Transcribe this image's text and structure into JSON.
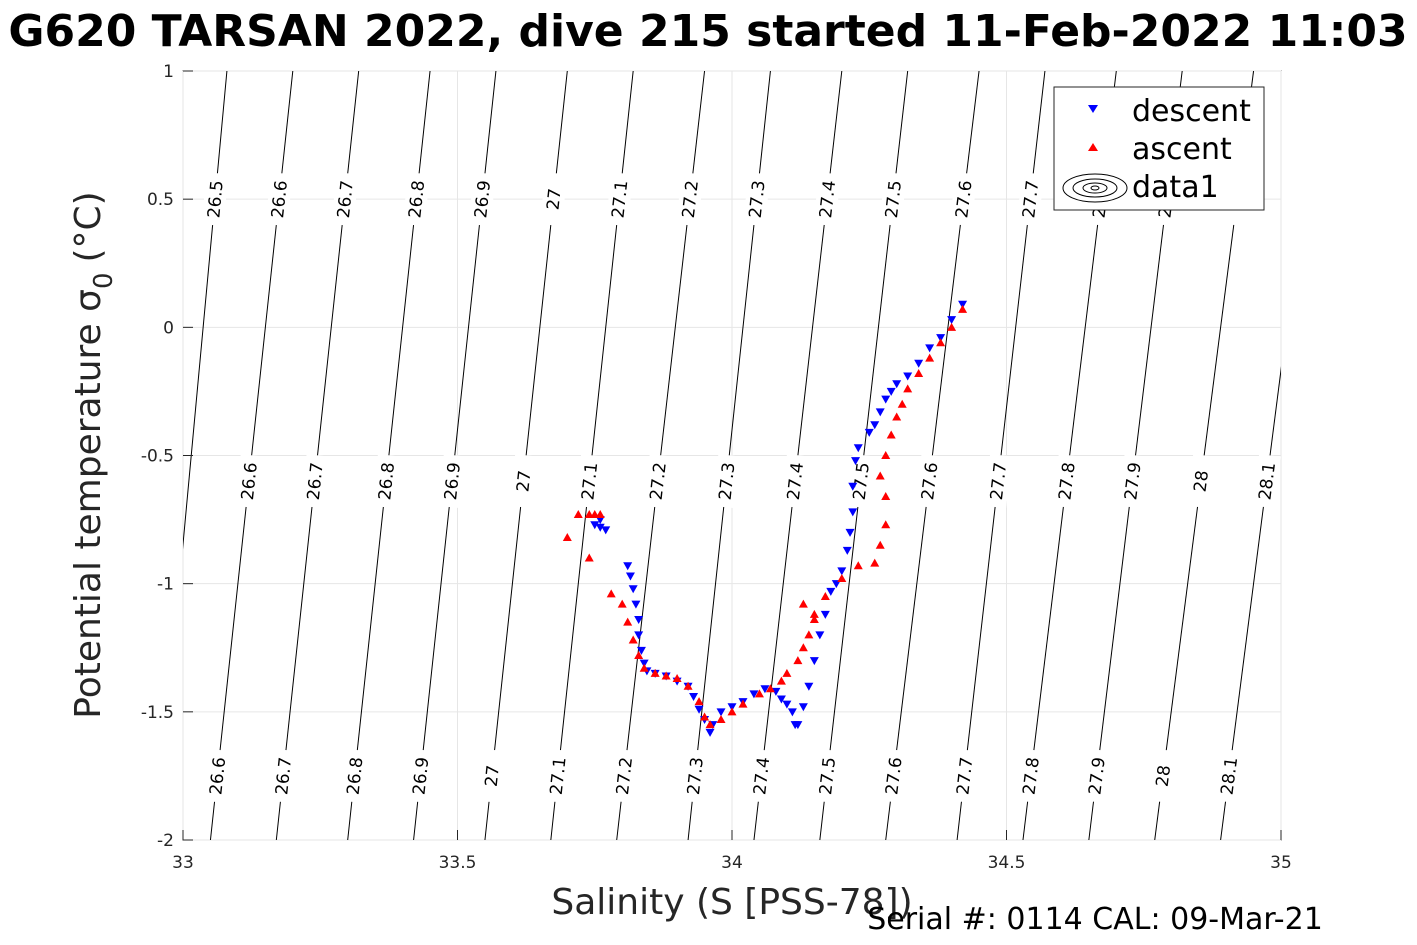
{
  "chart_data": {
    "type": "scatter",
    "title": "G620 TARSAN 2022, dive 215 started 11-Feb-2022 11:03",
    "xlabel": "Salinity (S [PSS-78])",
    "ylabel": "Potential temperature σ",
    "ylabel_sub": "0",
    "ylabel_unit": "(°C)",
    "footer": "Serial #: 0114  CAL: 09-Mar-21",
    "xlim": [
      33,
      35
    ],
    "ylim": [
      -2,
      1
    ],
    "xticks": [
      "33",
      "33.5",
      "34",
      "34.5",
      "35"
    ],
    "yticks": [
      "-2",
      "-1.5",
      "-1",
      "-0.5",
      "0",
      "0.5",
      "1"
    ],
    "grid": true,
    "legend_position": "top-right",
    "legend": [
      "descent",
      "ascent",
      "data1"
    ],
    "isopycnals": [
      {
        "label": "26.5",
        "x_top": 33.08,
        "x_bottom": 32.95
      },
      {
        "label": "26.6",
        "x_top": 33.2,
        "x_bottom": 33.05
      },
      {
        "label": "26.7",
        "x_top": 33.32,
        "x_bottom": 33.17
      },
      {
        "label": "26.8",
        "x_top": 33.45,
        "x_bottom": 33.3
      },
      {
        "label": "26.9",
        "x_top": 33.57,
        "x_bottom": 33.42
      },
      {
        "label": "27",
        "x_top": 33.7,
        "x_bottom": 33.55
      },
      {
        "label": "27.1",
        "x_top": 33.82,
        "x_bottom": 33.67
      },
      {
        "label": "27.2",
        "x_top": 33.95,
        "x_bottom": 33.79
      },
      {
        "label": "27.3",
        "x_top": 34.07,
        "x_bottom": 33.92
      },
      {
        "label": "27.4",
        "x_top": 34.2,
        "x_bottom": 34.04
      },
      {
        "label": "27.5",
        "x_top": 34.32,
        "x_bottom": 34.16
      },
      {
        "label": "27.6",
        "x_top": 34.45,
        "x_bottom": 34.28
      },
      {
        "label": "27.7",
        "x_top": 34.57,
        "x_bottom": 34.41
      },
      {
        "label": "27.8",
        "x_top": 34.7,
        "x_bottom": 34.53
      },
      {
        "label": "27.9",
        "x_top": 34.82,
        "x_bottom": 34.65
      },
      {
        "label": "28",
        "x_top": 34.95,
        "x_bottom": 34.77
      },
      {
        "label": "28.1",
        "x_top": 35.07,
        "x_bottom": 34.89
      }
    ],
    "series": [
      {
        "name": "descent",
        "color": "#0000ff",
        "marker": "triangle-down",
        "points": [
          [
            33.75,
            -0.77
          ],
          [
            33.76,
            -0.78
          ],
          [
            33.77,
            -0.79
          ],
          [
            33.76,
            -0.75
          ],
          [
            33.81,
            -0.93
          ],
          [
            33.815,
            -0.97
          ],
          [
            33.82,
            -1.02
          ],
          [
            33.825,
            -1.08
          ],
          [
            33.83,
            -1.14
          ],
          [
            33.83,
            -1.2
          ],
          [
            33.835,
            -1.26
          ],
          [
            33.84,
            -1.31
          ],
          [
            33.845,
            -1.34
          ],
          [
            33.86,
            -1.35
          ],
          [
            33.88,
            -1.36
          ],
          [
            33.9,
            -1.38
          ],
          [
            33.92,
            -1.4
          ],
          [
            33.93,
            -1.44
          ],
          [
            33.94,
            -1.49
          ],
          [
            33.95,
            -1.53
          ],
          [
            33.96,
            -1.58
          ],
          [
            33.965,
            -1.55
          ],
          [
            33.98,
            -1.5
          ],
          [
            34.0,
            -1.48
          ],
          [
            34.02,
            -1.46
          ],
          [
            34.04,
            -1.43
          ],
          [
            34.06,
            -1.41
          ],
          [
            34.08,
            -1.42
          ],
          [
            34.09,
            -1.45
          ],
          [
            34.1,
            -1.47
          ],
          [
            34.11,
            -1.5
          ],
          [
            34.115,
            -1.55
          ],
          [
            34.12,
            -1.55
          ],
          [
            34.13,
            -1.48
          ],
          [
            34.14,
            -1.4
          ],
          [
            34.15,
            -1.3
          ],
          [
            34.16,
            -1.2
          ],
          [
            34.17,
            -1.12
          ],
          [
            34.18,
            -1.03
          ],
          [
            34.19,
            -1.0
          ],
          [
            34.2,
            -0.95
          ],
          [
            34.21,
            -0.87
          ],
          [
            34.215,
            -0.8
          ],
          [
            34.22,
            -0.72
          ],
          [
            34.22,
            -0.62
          ],
          [
            34.225,
            -0.52
          ],
          [
            34.23,
            -0.47
          ],
          [
            34.25,
            -0.41
          ],
          [
            34.26,
            -0.38
          ],
          [
            34.27,
            -0.33
          ],
          [
            34.28,
            -0.28
          ],
          [
            34.29,
            -0.25
          ],
          [
            34.3,
            -0.22
          ],
          [
            34.32,
            -0.19
          ],
          [
            34.34,
            -0.14
          ],
          [
            34.36,
            -0.08
          ],
          [
            34.38,
            -0.04
          ],
          [
            34.4,
            0.03
          ],
          [
            34.42,
            0.09
          ]
        ]
      },
      {
        "name": "ascent",
        "color": "#ff0000",
        "marker": "triangle-up",
        "points": [
          [
            33.7,
            -0.82
          ],
          [
            33.72,
            -0.73
          ],
          [
            33.74,
            -0.73
          ],
          [
            33.75,
            -0.73
          ],
          [
            33.76,
            -0.73
          ],
          [
            33.74,
            -0.9
          ],
          [
            33.78,
            -1.04
          ],
          [
            33.8,
            -1.08
          ],
          [
            33.81,
            -1.15
          ],
          [
            33.82,
            -1.22
          ],
          [
            33.83,
            -1.28
          ],
          [
            33.84,
            -1.33
          ],
          [
            33.86,
            -1.35
          ],
          [
            33.88,
            -1.36
          ],
          [
            33.9,
            -1.37
          ],
          [
            33.92,
            -1.4
          ],
          [
            33.94,
            -1.46
          ],
          [
            33.95,
            -1.52
          ],
          [
            33.96,
            -1.55
          ],
          [
            33.98,
            -1.53
          ],
          [
            34.0,
            -1.5
          ],
          [
            34.02,
            -1.47
          ],
          [
            34.05,
            -1.43
          ],
          [
            34.07,
            -1.41
          ],
          [
            34.09,
            -1.38
          ],
          [
            34.1,
            -1.35
          ],
          [
            34.12,
            -1.3
          ],
          [
            34.13,
            -1.25
          ],
          [
            34.14,
            -1.2
          ],
          [
            34.15,
            -1.14
          ],
          [
            34.17,
            -1.05
          ],
          [
            34.2,
            -0.98
          ],
          [
            34.23,
            -0.93
          ],
          [
            34.26,
            -0.92
          ],
          [
            34.27,
            -0.85
          ],
          [
            34.28,
            -0.77
          ],
          [
            34.28,
            -0.66
          ],
          [
            34.27,
            -0.58
          ],
          [
            34.28,
            -0.5
          ],
          [
            34.29,
            -0.42
          ],
          [
            34.3,
            -0.35
          ],
          [
            34.31,
            -0.3
          ],
          [
            34.32,
            -0.24
          ],
          [
            34.34,
            -0.18
          ],
          [
            34.36,
            -0.12
          ],
          [
            34.38,
            -0.06
          ],
          [
            34.4,
            0.0
          ],
          [
            34.42,
            0.07
          ],
          [
            34.13,
            -1.08
          ],
          [
            34.15,
            -1.12
          ]
        ]
      }
    ]
  }
}
